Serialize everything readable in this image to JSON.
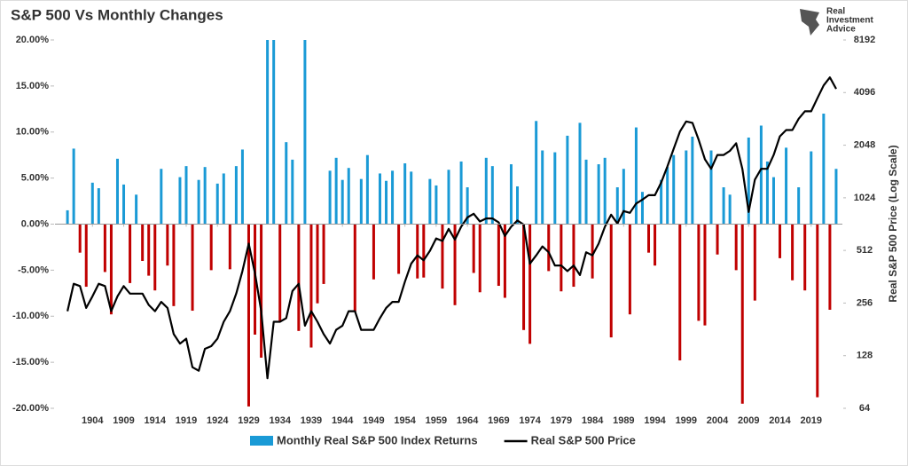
{
  "chart_data": {
    "type": "bar_line",
    "title": "S&P 500 Vs Monthly Changes",
    "logo": [
      "Real",
      "Investment",
      "Advice"
    ],
    "y2_label": "Real S&P 500 Price (Log Scale)",
    "x": [
      1900,
      1901,
      1902,
      1903,
      1904,
      1905,
      1906,
      1907,
      1908,
      1909,
      1910,
      1911,
      1912,
      1913,
      1914,
      1915,
      1916,
      1917,
      1918,
      1919,
      1920,
      1921,
      1922,
      1923,
      1924,
      1925,
      1926,
      1927,
      1928,
      1929,
      1930,
      1931,
      1932,
      1933,
      1934,
      1935,
      1936,
      1937,
      1938,
      1939,
      1940,
      1941,
      1942,
      1943,
      1944,
      1945,
      1946,
      1947,
      1948,
      1949,
      1950,
      1951,
      1952,
      1953,
      1954,
      1955,
      1956,
      1957,
      1958,
      1959,
      1960,
      1961,
      1962,
      1963,
      1964,
      1965,
      1966,
      1967,
      1968,
      1969,
      1970,
      1971,
      1972,
      1973,
      1974,
      1975,
      1976,
      1977,
      1978,
      1979,
      1980,
      1981,
      1982,
      1983,
      1984,
      1985,
      1986,
      1987,
      1988,
      1989,
      1990,
      1991,
      1992,
      1993,
      1994,
      1995,
      1996,
      1997,
      1998,
      1999,
      2000,
      2001,
      2002,
      2003,
      2004,
      2005,
      2006,
      2007,
      2008,
      2009,
      2010,
      2011,
      2012,
      2013,
      2014,
      2015,
      2016,
      2017,
      2018,
      2019,
      2020,
      2021,
      2022,
      2023
    ],
    "series": [
      {
        "name": "Monthly Real S&P 500 Index Returns",
        "kind": "bar",
        "color": "#1a9ad6",
        "negative_color": "#c00000",
        "values": [
          1.5,
          8.2,
          -3.1,
          -6.8,
          4.5,
          3.9,
          -5.2,
          -9.8,
          7.1,
          4.3,
          -6.4,
          3.2,
          -4.0,
          -5.6,
          -7.2,
          6.0,
          -4.5,
          -8.9,
          5.1,
          6.3,
          -9.4,
          4.8,
          6.2,
          -5.0,
          4.4,
          5.5,
          -4.9,
          6.3,
          8.1,
          -19.8,
          -12.0,
          -14.5,
          20,
          20,
          -10.5,
          8.9,
          7.0,
          -11.6,
          20,
          -13.4,
          -8.6,
          -6.5,
          5.8,
          7.2,
          4.8,
          6.1,
          -9.5,
          4.9,
          7.5,
          -6.0,
          5.5,
          4.7,
          5.8,
          -5.4,
          6.6,
          5.7,
          -5.9,
          -5.8,
          4.9,
          4.2,
          -7.0,
          5.9,
          -8.8,
          6.8,
          4.0,
          -5.3,
          -7.4,
          7.2,
          6.3,
          -6.7,
          -8.0,
          6.5,
          4.1,
          -11.5,
          -13.0,
          11.2,
          8.0,
          -5.1,
          7.8,
          -7.3,
          9.6,
          -6.8,
          11.0,
          7.0,
          -5.9,
          6.5,
          7.2,
          -12.3,
          4.0,
          6.0,
          -9.8,
          10.5,
          3.5,
          -3.1,
          -4.5,
          4.8,
          6.2,
          7.5,
          -14.8,
          8.0,
          9.5,
          -10.5,
          -11.0,
          8.0,
          -3.3,
          4.0,
          3.2,
          -5.0,
          -19.5,
          9.4,
          -8.3,
          10.7,
          6.8,
          5.1,
          -3.7,
          8.3,
          -6.1,
          4.0,
          -7.2,
          7.9,
          -18.8,
          12.0,
          -9.3,
          6.0
        ]
      },
      {
        "name": "Real S&P 500 Price",
        "kind": "line",
        "axis": "y2",
        "color": "#000000",
        "values": [
          230,
          330,
          320,
          240,
          280,
          330,
          320,
          230,
          280,
          320,
          290,
          290,
          290,
          250,
          230,
          260,
          240,
          170,
          150,
          160,
          110,
          105,
          140,
          145,
          160,
          200,
          230,
          290,
          390,
          560,
          380,
          230,
          95,
          200,
          200,
          210,
          300,
          330,
          190,
          230,
          200,
          170,
          150,
          180,
          190,
          230,
          230,
          180,
          180,
          180,
          210,
          240,
          260,
          260,
          340,
          430,
          480,
          450,
          510,
          600,
          580,
          680,
          590,
          700,
          790,
          830,
          750,
          780,
          780,
          740,
          620,
          700,
          760,
          720,
          430,
          480,
          540,
          500,
          420,
          420,
          390,
          420,
          370,
          500,
          480,
          560,
          700,
          820,
          730,
          860,
          840,
          950,
          1000,
          1060,
          1060,
          1250,
          1550,
          1950,
          2450,
          2800,
          2750,
          2200,
          1700,
          1500,
          1800,
          1800,
          1900,
          2100,
          1500,
          850,
          1300,
          1500,
          1500,
          1800,
          2300,
          2500,
          2500,
          2900,
          3200,
          3200,
          3800,
          4500,
          5000,
          4300
        ]
      }
    ],
    "xlim": [
      1898,
      2024
    ],
    "xticks": [
      1904,
      1909,
      1914,
      1919,
      1924,
      1929,
      1934,
      1939,
      1944,
      1949,
      1954,
      1959,
      1964,
      1969,
      1974,
      1979,
      1984,
      1989,
      1994,
      1999,
      2004,
      2009,
      2014,
      2019
    ],
    "ylim": [
      -20,
      20
    ],
    "yticks": [
      {
        "value": -20,
        "label": "-20.00%"
      },
      {
        "value": -15,
        "label": "-15.00%"
      },
      {
        "value": -10,
        "label": "-10.00%"
      },
      {
        "value": -5,
        "label": "-5.00%"
      },
      {
        "value": 0,
        "label": "0.00%"
      },
      {
        "value": 5,
        "label": "5.00%"
      },
      {
        "value": 10,
        "label": "10.00%"
      },
      {
        "value": 15,
        "label": "15.00%"
      },
      {
        "value": 20,
        "label": "20.00%"
      }
    ],
    "y2lim": [
      64,
      8192
    ],
    "y2ticks": [
      64,
      128,
      256,
      512,
      1024,
      2048,
      4096,
      8192
    ],
    "y2_log": true,
    "grid": false
  }
}
